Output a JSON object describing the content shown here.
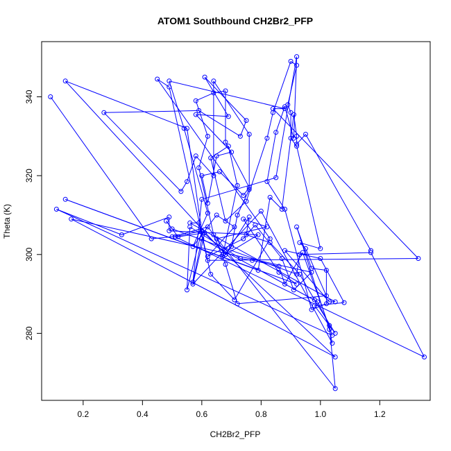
{
  "chart_data": {
    "type": "line",
    "title": "ATOM1 Southbound CH2Br2_PFP",
    "xlabel": "CH2Br2_PFP",
    "ylabel": "Theta (K)",
    "xlim": [
      0.06,
      1.37
    ],
    "ylim": [
      263,
      354
    ],
    "xticks": [
      0.2,
      0.4,
      0.6,
      0.8,
      1.0,
      1.2
    ],
    "xtick_labels": [
      "0.2",
      "0.4",
      "0.6",
      "0.8",
      "1.0",
      "1.2"
    ],
    "yticks": [
      280,
      300,
      320,
      340
    ],
    "ytick_labels": [
      "280",
      "300",
      "320",
      "340"
    ],
    "grid": false,
    "markers": "open-circle",
    "color": "#0000ff",
    "series": [
      {
        "points": [
          [
            0.09,
            340.0
          ],
          [
            0.43,
            304.0
          ],
          [
            0.5,
            304.5
          ],
          [
            0.62,
            307.0
          ],
          [
            1.05,
            266.0
          ],
          [
            1.03,
            282.0
          ],
          [
            0.99,
            288.0
          ],
          [
            0.6,
            304.0
          ],
          [
            0.57,
            293.0
          ],
          [
            0.6,
            314.0
          ],
          [
            0.85,
            319.5
          ],
          [
            0.92,
            350.2
          ],
          [
            0.91,
            329.5
          ],
          [
            0.88,
            337.5
          ],
          [
            0.85,
            331.0
          ],
          [
            0.82,
            318.5
          ],
          [
            0.88,
            311.5
          ],
          [
            0.97,
            286.0
          ],
          [
            1.02,
            287.5
          ],
          [
            1.02,
            296.0
          ],
          [
            0.97,
            296.5
          ],
          [
            0.92,
            307.0
          ],
          [
            1.03,
            281.0
          ],
          [
            1.04,
            277.5
          ],
          [
            0.8,
            311.0
          ],
          [
            0.57,
            292.5
          ],
          [
            0.61,
            305.5
          ],
          [
            0.52,
            304.5
          ],
          [
            0.48,
            308.5
          ],
          [
            0.5,
            306.5
          ],
          [
            0.92,
            295.0
          ],
          [
            0.93,
            300.0
          ],
          [
            1.17,
            300.5
          ],
          [
            1.35,
            274.0
          ],
          [
            0.51,
            304.5
          ],
          [
            0.6,
            306.0
          ],
          [
            0.55,
            291.0
          ],
          [
            0.56,
            307.0
          ],
          [
            0.73,
            299.0
          ],
          [
            0.77,
            298.5
          ],
          [
            0.86,
            297.0
          ],
          [
            0.88,
            292.5
          ],
          [
            0.94,
            300.5
          ],
          [
            1.04,
            279.5
          ],
          [
            0.11,
            311.5
          ],
          [
            0.33,
            305.0
          ],
          [
            0.49,
            309.5
          ],
          [
            0.49,
            306.0
          ],
          [
            0.79,
            305.0
          ],
          [
            0.67,
            299.5
          ],
          [
            0.72,
            317.5
          ],
          [
            0.69,
            327.5
          ],
          [
            0.63,
            324.5
          ],
          [
            0.68,
            308.5
          ],
          [
            0.75,
            313.5
          ],
          [
            0.82,
            329.5
          ],
          [
            0.84,
            336.0
          ],
          [
            0.9,
            349.0
          ],
          [
            0.92,
            348.0
          ],
          [
            0.89,
            338.0
          ],
          [
            0.9,
            336.0
          ],
          [
            0.9,
            329.5
          ],
          [
            0.92,
            327.5
          ],
          [
            1.0,
            301.5
          ],
          [
            0.93,
            303.0
          ],
          [
            0.95,
            301.5
          ],
          [
            1.02,
            289.5
          ],
          [
            0.72,
            287.5
          ],
          [
            0.68,
            297.5
          ],
          [
            0.64,
            305.0
          ],
          [
            0.59,
            322.0
          ],
          [
            0.62,
            330.0
          ],
          [
            0.58,
            339.0
          ],
          [
            0.64,
            341.0
          ],
          [
            0.68,
            341.5
          ],
          [
            0.68,
            328.5
          ],
          [
            0.76,
            317.0
          ],
          [
            0.74,
            315.0
          ],
          [
            0.66,
            321.0
          ],
          [
            0.6,
            320.0
          ],
          [
            0.62,
            313.0
          ],
          [
            0.65,
            325.0
          ],
          [
            0.7,
            326.0
          ],
          [
            0.58,
            335.5
          ],
          [
            0.69,
            335.0
          ],
          [
            0.61,
            345.0
          ],
          [
            0.75,
            334.0
          ],
          [
            0.73,
            330.0
          ],
          [
            0.59,
            336.5
          ],
          [
            0.27,
            336.0
          ],
          [
            0.53,
            316.0
          ],
          [
            0.55,
            318.5
          ],
          [
            0.58,
            325.0
          ],
          [
            0.64,
            320.0
          ],
          [
            0.64,
            344.0
          ],
          [
            0.76,
            330.5
          ],
          [
            0.76,
            316.5
          ],
          [
            0.72,
            310.0
          ],
          [
            0.7,
            302.0
          ],
          [
            0.68,
            300.0
          ],
          [
            0.76,
            309.5
          ],
          [
            0.75,
            305.0
          ],
          [
            0.83,
            303.0
          ],
          [
            0.93,
            295.0
          ],
          [
            0.98,
            288.5
          ],
          [
            1.05,
            280.0
          ],
          [
            0.98,
            287.0
          ],
          [
            1.08,
            287.8
          ],
          [
            1.0,
            299.0
          ],
          [
            0.88,
            301.0
          ],
          [
            1.03,
            288.0
          ],
          [
            1.05,
            288.0
          ],
          [
            0.56,
            308.0
          ],
          [
            0.59,
            308.0
          ],
          [
            0.63,
            295.0
          ],
          [
            0.71,
            288.5
          ],
          [
            0.83,
            304.0
          ],
          [
            0.45,
            344.5
          ],
          [
            0.49,
            342.5
          ],
          [
            0.62,
            298.5
          ],
          [
            1.33,
            299.0
          ],
          [
            0.84,
            337.0
          ],
          [
            0.88,
            337.0
          ],
          [
            0.49,
            344.0
          ],
          [
            0.54,
            332.0
          ],
          [
            0.62,
            310.5
          ],
          [
            0.57,
            302.0
          ],
          [
            0.65,
            310.0
          ],
          [
            0.71,
            307.0
          ],
          [
            0.62,
            299.5
          ],
          [
            0.74,
            304.0
          ],
          [
            0.78,
            307.5
          ],
          [
            0.87,
            299.0
          ],
          [
            0.91,
            291.0
          ],
          [
            0.97,
            295.5
          ],
          [
            0.16,
            309.0
          ],
          [
            1.05,
            274.0
          ],
          [
            0.6,
            306.0
          ],
          [
            0.55,
            332.0
          ],
          [
            0.14,
            344.0
          ],
          [
            0.68,
            300.0
          ],
          [
            0.65,
            304.0
          ],
          [
            0.82,
            307.0
          ],
          [
            0.74,
            309.0
          ],
          [
            0.86,
            295.5
          ],
          [
            0.92,
            292.5
          ],
          [
            0.14,
            314.0
          ],
          [
            0.79,
            296.0
          ],
          [
            0.83,
            314.5
          ],
          [
            0.87,
            311.5
          ],
          [
            0.91,
            335.5
          ],
          [
            0.92,
            330.0
          ],
          [
            0.92,
            328.0
          ],
          [
            0.95,
            330.5
          ],
          [
            1.17,
            301.0
          ]
        ]
      }
    ]
  }
}
